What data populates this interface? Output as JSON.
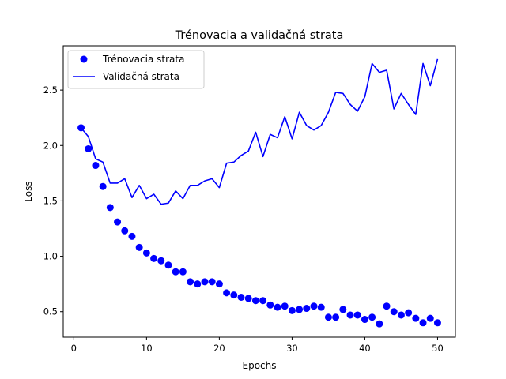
{
  "chart_data": {
    "type": "line",
    "title": "Trénovacia a validačná strata",
    "xlabel": "Epochs",
    "ylabel": "Loss",
    "xlim": [
      -1.45,
      52.45
    ],
    "ylim": [
      0.27,
      2.9
    ],
    "xticks": [
      0,
      10,
      20,
      30,
      40,
      50
    ],
    "yticks": [
      0.5,
      1.0,
      1.5,
      2.0,
      2.5
    ],
    "xtick_labels": [
      "0",
      "10",
      "20",
      "30",
      "40",
      "50"
    ],
    "ytick_labels": [
      "0.5",
      "1.0",
      "1.5",
      "2.0",
      "2.5"
    ],
    "grid": false,
    "legend_position": "top-left",
    "x": [
      1,
      2,
      3,
      4,
      5,
      6,
      7,
      8,
      9,
      10,
      11,
      12,
      13,
      14,
      15,
      16,
      17,
      18,
      19,
      20,
      21,
      22,
      23,
      24,
      25,
      26,
      27,
      28,
      29,
      30,
      31,
      32,
      33,
      34,
      35,
      36,
      37,
      38,
      39,
      40,
      41,
      42,
      43,
      44,
      45,
      46,
      47,
      48,
      49,
      50
    ],
    "series": [
      {
        "name": "Trénovacia strata",
        "style": "markers",
        "color": "#0000ff",
        "values": [
          2.16,
          1.97,
          1.82,
          1.63,
          1.44,
          1.31,
          1.23,
          1.18,
          1.08,
          1.03,
          0.98,
          0.96,
          0.92,
          0.86,
          0.86,
          0.77,
          0.75,
          0.77,
          0.77,
          0.75,
          0.67,
          0.65,
          0.63,
          0.62,
          0.6,
          0.6,
          0.56,
          0.54,
          0.55,
          0.51,
          0.52,
          0.53,
          0.55,
          0.54,
          0.45,
          0.45,
          0.52,
          0.47,
          0.47,
          0.43,
          0.45,
          0.39,
          0.55,
          0.5,
          0.47,
          0.49,
          0.44,
          0.4,
          0.44,
          0.4
        ]
      },
      {
        "name": "Validačná strata",
        "style": "line",
        "color": "#0000ff",
        "values": [
          2.16,
          2.08,
          1.88,
          1.85,
          1.66,
          1.66,
          1.7,
          1.53,
          1.64,
          1.52,
          1.56,
          1.47,
          1.48,
          1.59,
          1.52,
          1.64,
          1.64,
          1.68,
          1.7,
          1.62,
          1.84,
          1.85,
          1.91,
          1.95,
          2.12,
          1.9,
          2.1,
          2.07,
          2.26,
          2.06,
          2.3,
          2.18,
          2.14,
          2.18,
          2.3,
          2.48,
          2.47,
          2.37,
          2.31,
          2.44,
          2.74,
          2.66,
          2.68,
          2.33,
          2.47,
          2.37,
          2.28,
          2.74,
          2.54,
          2.78
        ]
      }
    ]
  }
}
